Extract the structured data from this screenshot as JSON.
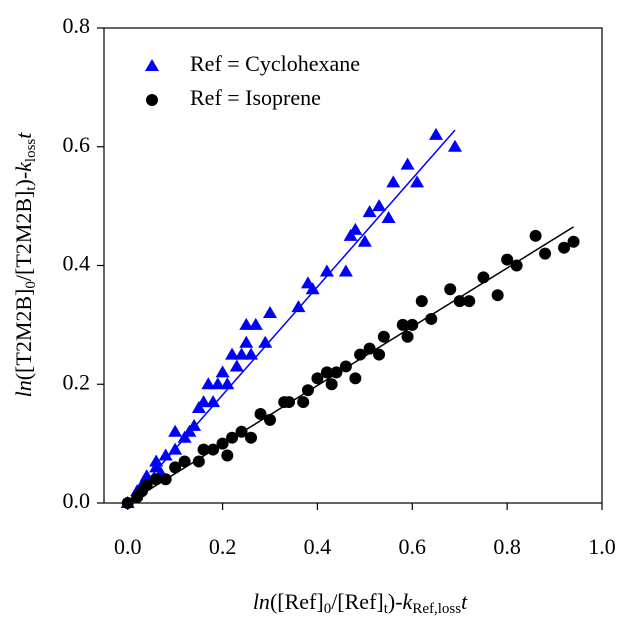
{
  "chart_data": {
    "type": "scatter",
    "xlabel": [
      "ln",
      "([Ref]",
      "0",
      "/[Ref]",
      "t",
      ")-",
      "k",
      "Ref,loss",
      "t"
    ],
    "ylabel": [
      "ln",
      "([T2M2B]",
      "0",
      "/[T2M2B]",
      "t",
      ")-",
      "k",
      "loss",
      "t"
    ],
    "xlim": [
      -0.05,
      1.0
    ],
    "ylim": [
      0,
      0.8
    ],
    "xticks": [
      {
        "value": 0,
        "label": "0.0"
      },
      {
        "value": 0.2,
        "label": "0.2"
      },
      {
        "value": 0.4,
        "label": "0.4"
      },
      {
        "value": 0.6,
        "label": "0.6"
      },
      {
        "value": 0.8,
        "label": "0.8"
      },
      {
        "value": 1.0,
        "label": "1.0"
      }
    ],
    "yticks": [
      {
        "value": 0,
        "label": "0.0"
      },
      {
        "value": 0.2,
        "label": "0.2"
      },
      {
        "value": 0.4,
        "label": "0.4"
      },
      {
        "value": 0.6,
        "label": "0.6"
      },
      {
        "value": 0.8,
        "label": "0.8"
      }
    ],
    "legend": "upper left",
    "series": [
      {
        "name": "Ref = Cyclohexane",
        "color": "#0000ff",
        "marker": "triangle",
        "x": [
          0,
          0.02,
          0.03,
          0.04,
          0.06,
          0.06,
          0.07,
          0.08,
          0.1,
          0.1,
          0.12,
          0.13,
          0.14,
          0.15,
          0.16,
          0.17,
          0.18,
          0.19,
          0.2,
          0.21,
          0.22,
          0.23,
          0.24,
          0.25,
          0.25,
          0.26,
          0.27,
          0.29,
          0.3,
          0.36,
          0.38,
          0.39,
          0.42,
          0.46,
          0.47,
          0.48,
          0.5,
          0.51,
          0.53,
          0.55,
          0.56,
          0.59,
          0.61,
          0.65,
          0.69
        ],
        "y": [
          0,
          0.02,
          0.03,
          0.045,
          0.06,
          0.07,
          0.05,
          0.08,
          0.09,
          0.12,
          0.11,
          0.12,
          0.13,
          0.16,
          0.17,
          0.2,
          0.17,
          0.2,
          0.22,
          0.2,
          0.25,
          0.23,
          0.25,
          0.27,
          0.3,
          0.25,
          0.3,
          0.27,
          0.32,
          0.33,
          0.37,
          0.36,
          0.39,
          0.39,
          0.45,
          0.46,
          0.44,
          0.49,
          0.5,
          0.48,
          0.54,
          0.57,
          0.54,
          0.62,
          0.6
        ],
        "fit": {
          "x": [
            0,
            0.69
          ],
          "y": [
            0,
            0.628
          ]
        }
      },
      {
        "name": "Ref = Isoprene",
        "color": "#000000",
        "marker": "circle",
        "x": [
          0,
          0.02,
          0.03,
          0.04,
          0.06,
          0.08,
          0.1,
          0.12,
          0.15,
          0.16,
          0.18,
          0.2,
          0.21,
          0.22,
          0.24,
          0.26,
          0.28,
          0.3,
          0.33,
          0.34,
          0.37,
          0.38,
          0.4,
          0.42,
          0.43,
          0.44,
          0.46,
          0.48,
          0.49,
          0.51,
          0.53,
          0.54,
          0.58,
          0.59,
          0.6,
          0.62,
          0.64,
          0.68,
          0.7,
          0.72,
          0.75,
          0.78,
          0.8,
          0.82,
          0.86,
          0.88,
          0.92,
          0.94
        ],
        "y": [
          0,
          0.01,
          0.02,
          0.03,
          0.04,
          0.04,
          0.06,
          0.07,
          0.07,
          0.09,
          0.09,
          0.1,
          0.08,
          0.11,
          0.12,
          0.11,
          0.15,
          0.14,
          0.17,
          0.17,
          0.17,
          0.19,
          0.21,
          0.22,
          0.2,
          0.22,
          0.23,
          0.21,
          0.25,
          0.26,
          0.25,
          0.28,
          0.3,
          0.28,
          0.3,
          0.34,
          0.31,
          0.36,
          0.34,
          0.34,
          0.38,
          0.35,
          0.41,
          0.4,
          0.45,
          0.42,
          0.43,
          0.44
        ],
        "fit": {
          "x": [
            0,
            0.94
          ],
          "y": [
            0,
            0.465
          ]
        }
      }
    ]
  }
}
